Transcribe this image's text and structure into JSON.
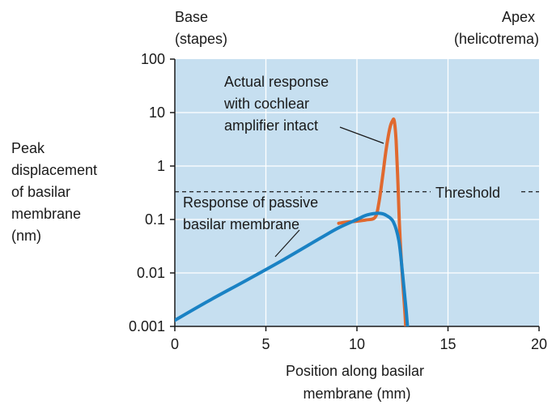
{
  "chart_data": {
    "type": "line",
    "x_axis": {
      "label_lines": [
        "Position along basilar",
        "membrane (mm)"
      ],
      "ticks": [
        0,
        5,
        10,
        15,
        20
      ],
      "range": [
        0,
        20
      ]
    },
    "y_axis": {
      "scale": "log",
      "label_lines": [
        "Peak",
        "displacement",
        "of basilar",
        "membrane",
        "(nm)"
      ],
      "ticks": [
        0.001,
        0.01,
        0.1,
        1,
        10,
        100
      ],
      "tick_labels": [
        "0.001",
        "0.01",
        "0.1",
        "1",
        "10",
        "100"
      ],
      "range": [
        0.001,
        100
      ]
    },
    "grid": true,
    "top_labels": {
      "left": [
        "Base",
        "(stapes)"
      ],
      "right": [
        "Apex",
        "(helicotrema)"
      ]
    },
    "threshold": {
      "value": 0.33,
      "label": "Threshold"
    },
    "series": [
      {
        "name": "Actual response with cochlear amplifier intact",
        "label_lines": [
          "Actual response",
          "with cochlear",
          "amplifier intact"
        ],
        "color": "#e0692f",
        "x": [
          9.0,
          9.5,
          10.0,
          10.5,
          11.0,
          11.2,
          11.4,
          11.6,
          11.8,
          11.95,
          12.05,
          12.15,
          12.25,
          12.35,
          12.5,
          12.65,
          12.75
        ],
        "y": [
          0.085,
          0.09,
          0.093,
          0.098,
          0.11,
          0.2,
          0.6,
          2.0,
          5.0,
          7.0,
          7.0,
          3.0,
          0.5,
          0.06,
          0.008,
          0.0015,
          0.0003
        ]
      },
      {
        "name": "Response of passive basilar membrane",
        "label_lines": [
          "Response of passive",
          "basilar membrane"
        ],
        "color": "#1a82c4",
        "x": [
          0,
          2,
          4,
          6,
          8,
          9,
          10,
          10.5,
          11,
          11.3,
          11.6,
          12.0,
          12.3,
          12.5,
          12.7,
          12.9
        ],
        "y": [
          0.0013,
          0.0032,
          0.0075,
          0.018,
          0.045,
          0.07,
          0.1,
          0.12,
          0.13,
          0.13,
          0.12,
          0.09,
          0.04,
          0.01,
          0.002,
          0.0003
        ]
      }
    ],
    "colors": {
      "plot_background": "#c6dff0",
      "grid": "#ffffff"
    }
  }
}
